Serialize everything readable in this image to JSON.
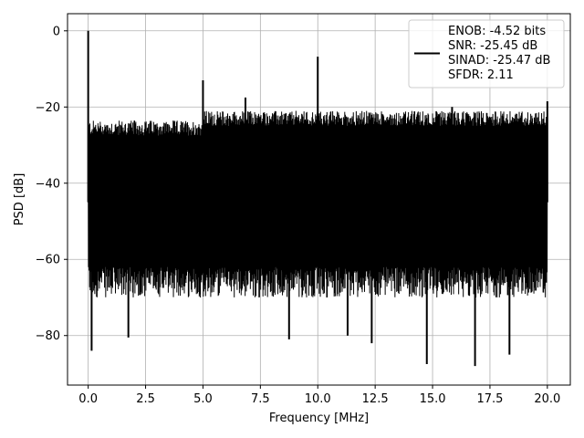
{
  "chart_data": {
    "type": "line",
    "title": "",
    "xlabel": "Frequency [MHz]",
    "ylabel": "PSD [dB]",
    "xlim": [
      -0.9,
      21.0
    ],
    "ylim": [
      -93.0,
      4.5
    ],
    "x_ticks": [
      0.0,
      2.5,
      5.0,
      7.5,
      10.0,
      12.5,
      15.0,
      17.5,
      20.0
    ],
    "x_tick_labels": [
      "0.0",
      "2.5",
      "5.0",
      "7.5",
      "10.0",
      "12.5",
      "15.0",
      "17.5",
      "20.0"
    ],
    "y_ticks": [
      0,
      -20,
      -40,
      -60,
      -80
    ],
    "y_tick_labels": [
      "0",
      "−20",
      "−40",
      "−60",
      "−80"
    ],
    "grid": true,
    "legend_position": "upper right",
    "series": [
      {
        "name": "ENOB: -4.52 bits\nSNR: -25.45 dB\nSINAD: -25.47 dB\nSFDR: 2.11",
        "color": "#000000",
        "x_range": [
          0.0,
          20.0
        ],
        "noise_floor_top": -25.5,
        "typical_minimum": -66.0,
        "peaks": [
          {
            "x": 0.0,
            "y": 0.0
          },
          {
            "x": 5.0,
            "y": -13.0
          },
          {
            "x": 6.85,
            "y": -17.5
          },
          {
            "x": 10.0,
            "y": -6.8
          },
          {
            "x": 15.85,
            "y": -20.0
          },
          {
            "x": 20.0,
            "y": -18.5
          }
        ],
        "dips": [
          {
            "x": 0.15,
            "y": -84.0
          },
          {
            "x": 1.75,
            "y": -80.5
          },
          {
            "x": 8.75,
            "y": -81.0
          },
          {
            "x": 11.3,
            "y": -80.0
          },
          {
            "x": 12.35,
            "y": -82.0
          },
          {
            "x": 14.75,
            "y": -87.5
          },
          {
            "x": 16.85,
            "y": -88.0
          },
          {
            "x": 18.35,
            "y": -85.0
          }
        ]
      }
    ]
  },
  "legend": {
    "lines": [
      "ENOB: -4.52 bits",
      "SNR: -25.45 dB",
      "SINAD: -25.47 dB",
      "SFDR: 2.11"
    ]
  }
}
